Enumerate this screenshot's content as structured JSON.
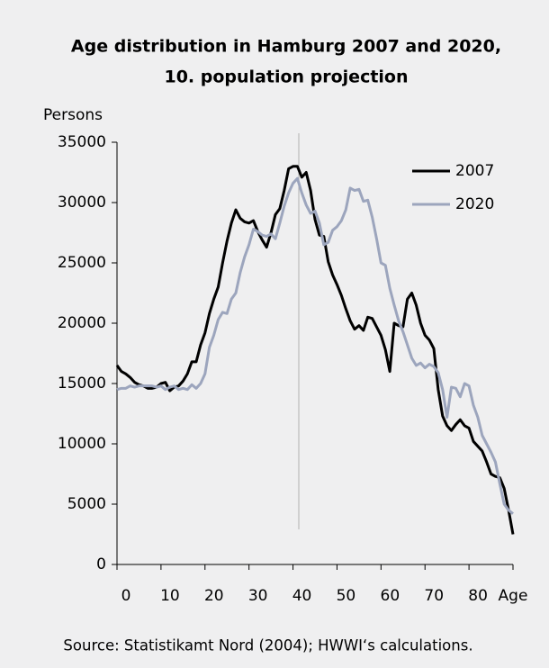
{
  "chart_data": {
    "type": "line",
    "title": [
      "Age distribution in Hamburg 2007 and 2020,",
      "10. population projection"
    ],
    "y_label": "Persons",
    "x_label": "Age",
    "source": "Source: Statistikamt Nord (2004);  HWWI‘s calculations.",
    "x": [
      0,
      1,
      2,
      3,
      4,
      5,
      6,
      7,
      8,
      9,
      10,
      11,
      12,
      13,
      14,
      15,
      16,
      17,
      18,
      19,
      20,
      21,
      22,
      23,
      24,
      25,
      26,
      27,
      28,
      29,
      30,
      31,
      32,
      33,
      34,
      35,
      36,
      37,
      38,
      39,
      40,
      41,
      42,
      43,
      44,
      45,
      46,
      47,
      48,
      49,
      50,
      51,
      52,
      53,
      54,
      55,
      56,
      57,
      58,
      59,
      60,
      61,
      62,
      63,
      64,
      65,
      66,
      67,
      68,
      69,
      70,
      71,
      72,
      73,
      74,
      75,
      76,
      77,
      78,
      79,
      80,
      81,
      82,
      83,
      84,
      85,
      86,
      87,
      88,
      89,
      90
    ],
    "series": [
      {
        "name": "2007",
        "color": "#000000",
        "values": [
          16500,
          16000,
          15800,
          15500,
          15100,
          14900,
          14800,
          14600,
          14600,
          14700,
          15000,
          15100,
          14400,
          14700,
          14800,
          15200,
          15800,
          16800,
          16800,
          18200,
          19200,
          20800,
          22000,
          23000,
          25000,
          26800,
          28300,
          29400,
          28700,
          28400,
          28300,
          28500,
          27600,
          26900,
          26300,
          27500,
          29000,
          29500,
          31000,
          32800,
          33000,
          33000,
          32100,
          32500,
          31000,
          28600,
          27300,
          27200,
          25100,
          24000,
          23200,
          22300,
          21200,
          20200,
          19500,
          19800,
          19400,
          20500,
          20400,
          19700,
          19000,
          17800,
          16000,
          20000,
          19800,
          19700,
          22000,
          22500,
          21500,
          20000,
          19000,
          18600,
          17900,
          14500,
          12300,
          11500,
          11100,
          11600,
          12000,
          11500,
          11300,
          10200,
          9800,
          9400,
          8500,
          7500,
          7300,
          7200,
          6300,
          4500,
          2500
        ]
      },
      {
        "name": "2020",
        "color": "#9ca5bd",
        "values": [
          14500,
          14600,
          14600,
          14800,
          14700,
          14800,
          14800,
          14800,
          14800,
          14700,
          14800,
          14500,
          14700,
          14800,
          14500,
          14600,
          14500,
          14900,
          14600,
          15000,
          15800,
          18000,
          19000,
          20300,
          20900,
          20800,
          22000,
          22500,
          24200,
          25500,
          26500,
          27800,
          27600,
          27300,
          27200,
          27400,
          27000,
          28300,
          29700,
          30800,
          31600,
          32000,
          30800,
          29800,
          29100,
          29300,
          28300,
          26500,
          26700,
          27700,
          28000,
          28500,
          29400,
          31200,
          31000,
          31100,
          30100,
          30200,
          28800,
          27000,
          25000,
          24800,
          22900,
          21500,
          20200,
          19300,
          18200,
          17100,
          16500,
          16700,
          16300,
          16600,
          16400,
          15900,
          14500,
          12200,
          14700,
          14600,
          13900,
          15000,
          14800,
          13200,
          12200,
          10700,
          10000,
          9300,
          8500,
          6700,
          5000,
          4500,
          4200
        ]
      }
    ],
    "xlim": [
      0,
      90
    ],
    "xticks": [
      0,
      10,
      20,
      30,
      40,
      50,
      60,
      70,
      80
    ],
    "ylim": [
      0,
      35000
    ],
    "yticks": [
      0,
      5000,
      10000,
      15000,
      20000,
      25000,
      30000,
      35000
    ],
    "grid": false,
    "legend": "upper right"
  }
}
